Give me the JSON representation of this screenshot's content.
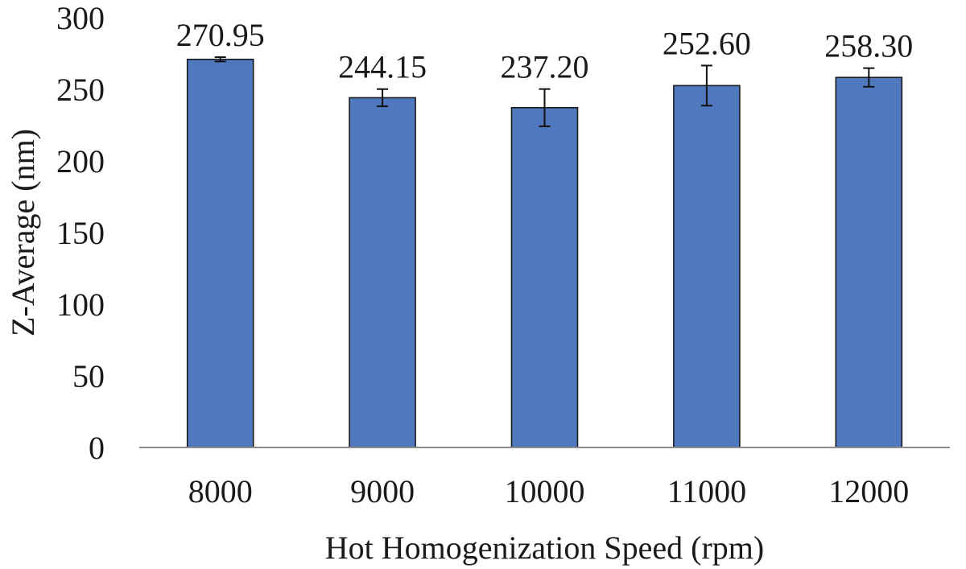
{
  "chart_data": {
    "type": "bar",
    "title": "",
    "xlabel": "Hot Homogenization Speed (rpm)",
    "ylabel": "Z-Average (nm)",
    "categories": [
      "8000",
      "9000",
      "10000",
      "11000",
      "12000"
    ],
    "values": [
      270.95,
      244.15,
      237.2,
      252.6,
      258.3
    ],
    "data_labels": [
      "270.95",
      "244.15",
      "237.20",
      "252.60",
      "258.30"
    ],
    "error": [
      1.5,
      6.0,
      13.0,
      14.0,
      6.5
    ],
    "ylim": [
      0,
      300
    ],
    "y_ticks": [
      0,
      50,
      100,
      150,
      200,
      250,
      300
    ],
    "y_tick_labels": [
      "0",
      "50",
      "100",
      "150",
      "200",
      "250",
      "300"
    ],
    "grid": false,
    "legend": "none",
    "colors": {
      "bar_fill": "#4f78bf",
      "bar_stroke": "#1b1b1b",
      "axis": "#8c8c8c",
      "text": "#1a1a1a"
    }
  }
}
